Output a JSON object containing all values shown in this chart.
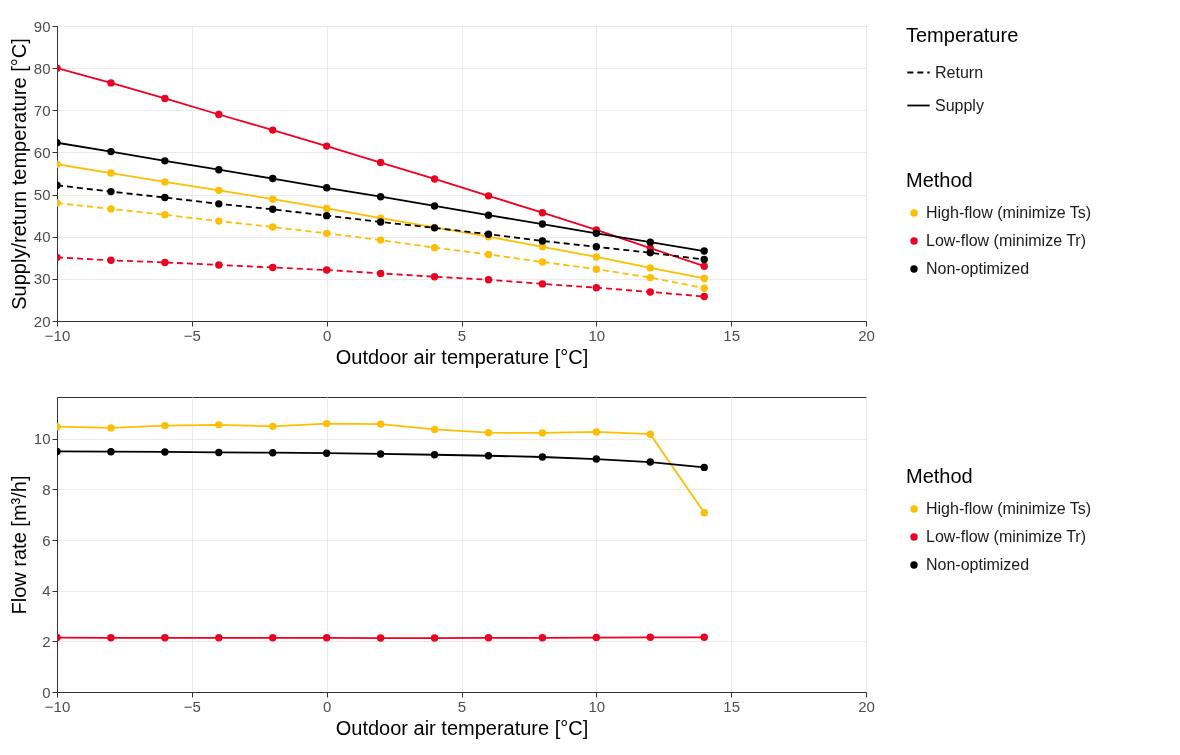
{
  "chart_data": [
    {
      "type": "line",
      "xlabel": "Outdoor air temperature [°C]",
      "ylabel": "Supply/return temperature [°C]",
      "legend_title": [
        "Temperature",
        "Method"
      ],
      "annotations": [
        "Return",
        "Supply"
      ],
      "legend": "right",
      "grid": true,
      "marker": "circle",
      "x": [
        -10,
        -8,
        -6,
        -4,
        -2,
        0,
        2,
        4,
        6,
        8,
        10,
        12,
        14
      ],
      "xlim": [
        -10,
        20
      ],
      "xticks": [
        -10,
        -5,
        0,
        5,
        10,
        15,
        20
      ],
      "ylim": [
        20,
        90
      ],
      "yticks": [
        20,
        30,
        40,
        50,
        60,
        70,
        80,
        90
      ],
      "series": [
        {
          "name": "High-flow (minimize Ts)",
          "line_style": "dashed",
          "color": "#ffbf00",
          "values": [
            48,
            46.6,
            45.2,
            43.7,
            42.3,
            40.8,
            39.2,
            37.4,
            35.8,
            34,
            32.3,
            30.3,
            27.8
          ]
        },
        {
          "name": "High-flow (minimize Ts)",
          "line_style": "solid",
          "color": "#ffbf00",
          "values": [
            57.2,
            55.1,
            53,
            51,
            48.9,
            46.7,
            44.4,
            42.2,
            40,
            37.6,
            35.2,
            32.6,
            30.1
          ]
        },
        {
          "name": "Low-flow (minimize Tr)",
          "line_style": "dashed",
          "color": "#ee0022",
          "values": [
            35.1,
            34.4,
            33.9,
            33.3,
            32.7,
            32.1,
            31.3,
            30.5,
            29.8,
            28.8,
            27.9,
            26.9,
            25.8
          ]
        },
        {
          "name": "Low-flow (minimize Tr)",
          "line_style": "solid",
          "color": "#ee0022",
          "values": [
            80,
            76.5,
            72.8,
            69,
            65.3,
            61.5,
            57.6,
            53.7,
            49.7,
            45.7,
            41.6,
            37.3,
            33
          ]
        },
        {
          "name": "Non-optimized",
          "line_style": "dashed",
          "color": "#000000",
          "values": [
            52.2,
            50.7,
            49.3,
            47.8,
            46.5,
            45,
            43.5,
            42.1,
            40.6,
            39,
            37.6,
            36.2,
            34.6
          ]
        },
        {
          "name": "Non-optimized",
          "line_style": "solid",
          "color": "#000000",
          "values": [
            62.3,
            60.2,
            58,
            55.9,
            53.8,
            51.6,
            49.5,
            47.3,
            45.1,
            43,
            40.8,
            38.7,
            36.6
          ]
        }
      ]
    },
    {
      "type": "line",
      "xlabel": "Outdoor air temperature [°C]",
      "ylabel": "Flow rate [m³/h]",
      "legend_title": [
        "Method"
      ],
      "legend": "right",
      "grid": true,
      "marker": "circle",
      "x": [
        -10,
        -8,
        -6,
        -4,
        -2,
        0,
        2,
        4,
        6,
        8,
        10,
        12,
        14
      ],
      "xlim": [
        -10,
        20
      ],
      "xticks": [
        -10,
        -5,
        0,
        5,
        10,
        15,
        20
      ],
      "ylim": [
        0,
        11.65
      ],
      "yticks": [
        0,
        2,
        4,
        6,
        8,
        10
      ],
      "series": [
        {
          "name": "High-flow (minimize Ts)",
          "line_style": "solid",
          "color": "#ffbf00",
          "values": [
            10.48,
            10.43,
            10.52,
            10.55,
            10.49,
            10.6,
            10.58,
            10.37,
            10.24,
            10.23,
            10.27,
            10.18,
            7.08
          ]
        },
        {
          "name": "Low-flow (minimize Tr)",
          "line_style": "solid",
          "color": "#ee0022",
          "values": [
            2.15,
            2.14,
            2.14,
            2.14,
            2.14,
            2.14,
            2.13,
            2.13,
            2.14,
            2.14,
            2.15,
            2.16,
            2.16
          ]
        },
        {
          "name": "Non-optimized",
          "line_style": "solid",
          "color": "#000000",
          "values": [
            9.5,
            9.49,
            9.48,
            9.46,
            9.45,
            9.43,
            9.4,
            9.37,
            9.33,
            9.28,
            9.2,
            9.08,
            8.87
          ]
        }
      ]
    }
  ]
}
